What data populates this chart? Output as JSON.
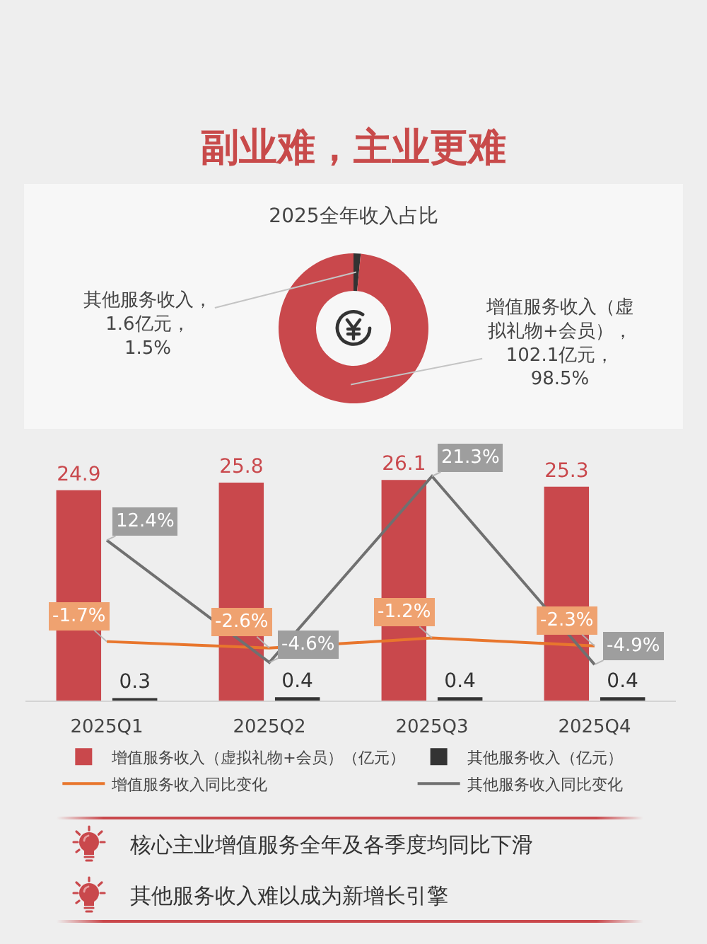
{
  "chart_data": [
    {
      "type": "donut",
      "title": "副业难，主业更难",
      "subtitle": "2025全年收入占比",
      "categories": [
        "其他服务收入，\n1.6亿元，\n1.5%",
        "增值服务收入（虚拟礼物+会员），\n102.1亿元，\n98.5%"
      ],
      "values": [
        1.6,
        102.1
      ],
      "colors": [
        "#333333",
        "#c9484c"
      ]
    },
    {
      "type": "bar",
      "categories": [
        "2025Q1",
        "2025Q2",
        "2025Q3",
        "2025Q4"
      ],
      "series": [
        {
          "name": "增值服务收入（虚拟礼物+会员）（亿元）",
          "color": "#c9484c",
          "values": [
            24.9,
            25.8,
            26.1,
            25.3
          ],
          "value_labels": [
            "24.9",
            "25.8",
            "26.1",
            "25.3"
          ]
        },
        {
          "name": "其他服务收入（亿元）",
          "color": "#333333",
          "values": [
            0.3,
            0.4,
            0.4,
            0.4
          ],
          "value_labels": [
            "0.3",
            "0.4",
            "0.4",
            "0.4"
          ]
        },
        {
          "name": "增值服务收入同比变化",
          "type": "line",
          "axis": "y2",
          "color": "#e8762d",
          "values": [
            -1.7,
            -2.6,
            -1.2,
            -2.3
          ],
          "value_labels": [
            "-1.7%",
            "-2.6%",
            "-1.2%",
            "-2.3%"
          ]
        },
        {
          "name": "其他服务收入同比变化",
          "type": "line",
          "axis": "y2",
          "color": "#707070",
          "values": [
            12.4,
            -4.6,
            21.3,
            -4.9
          ],
          "value_labels": [
            "12.4%",
            "-4.6%",
            "21.3%",
            "-4.9%"
          ]
        }
      ],
      "tick_labels": "x",
      "legend": "bottom",
      "annotations": [
        "核心主业增值服务全年及各季度均同比下滑",
        "其他服务收入难以成为新增长引擎"
      ]
    }
  ]
}
